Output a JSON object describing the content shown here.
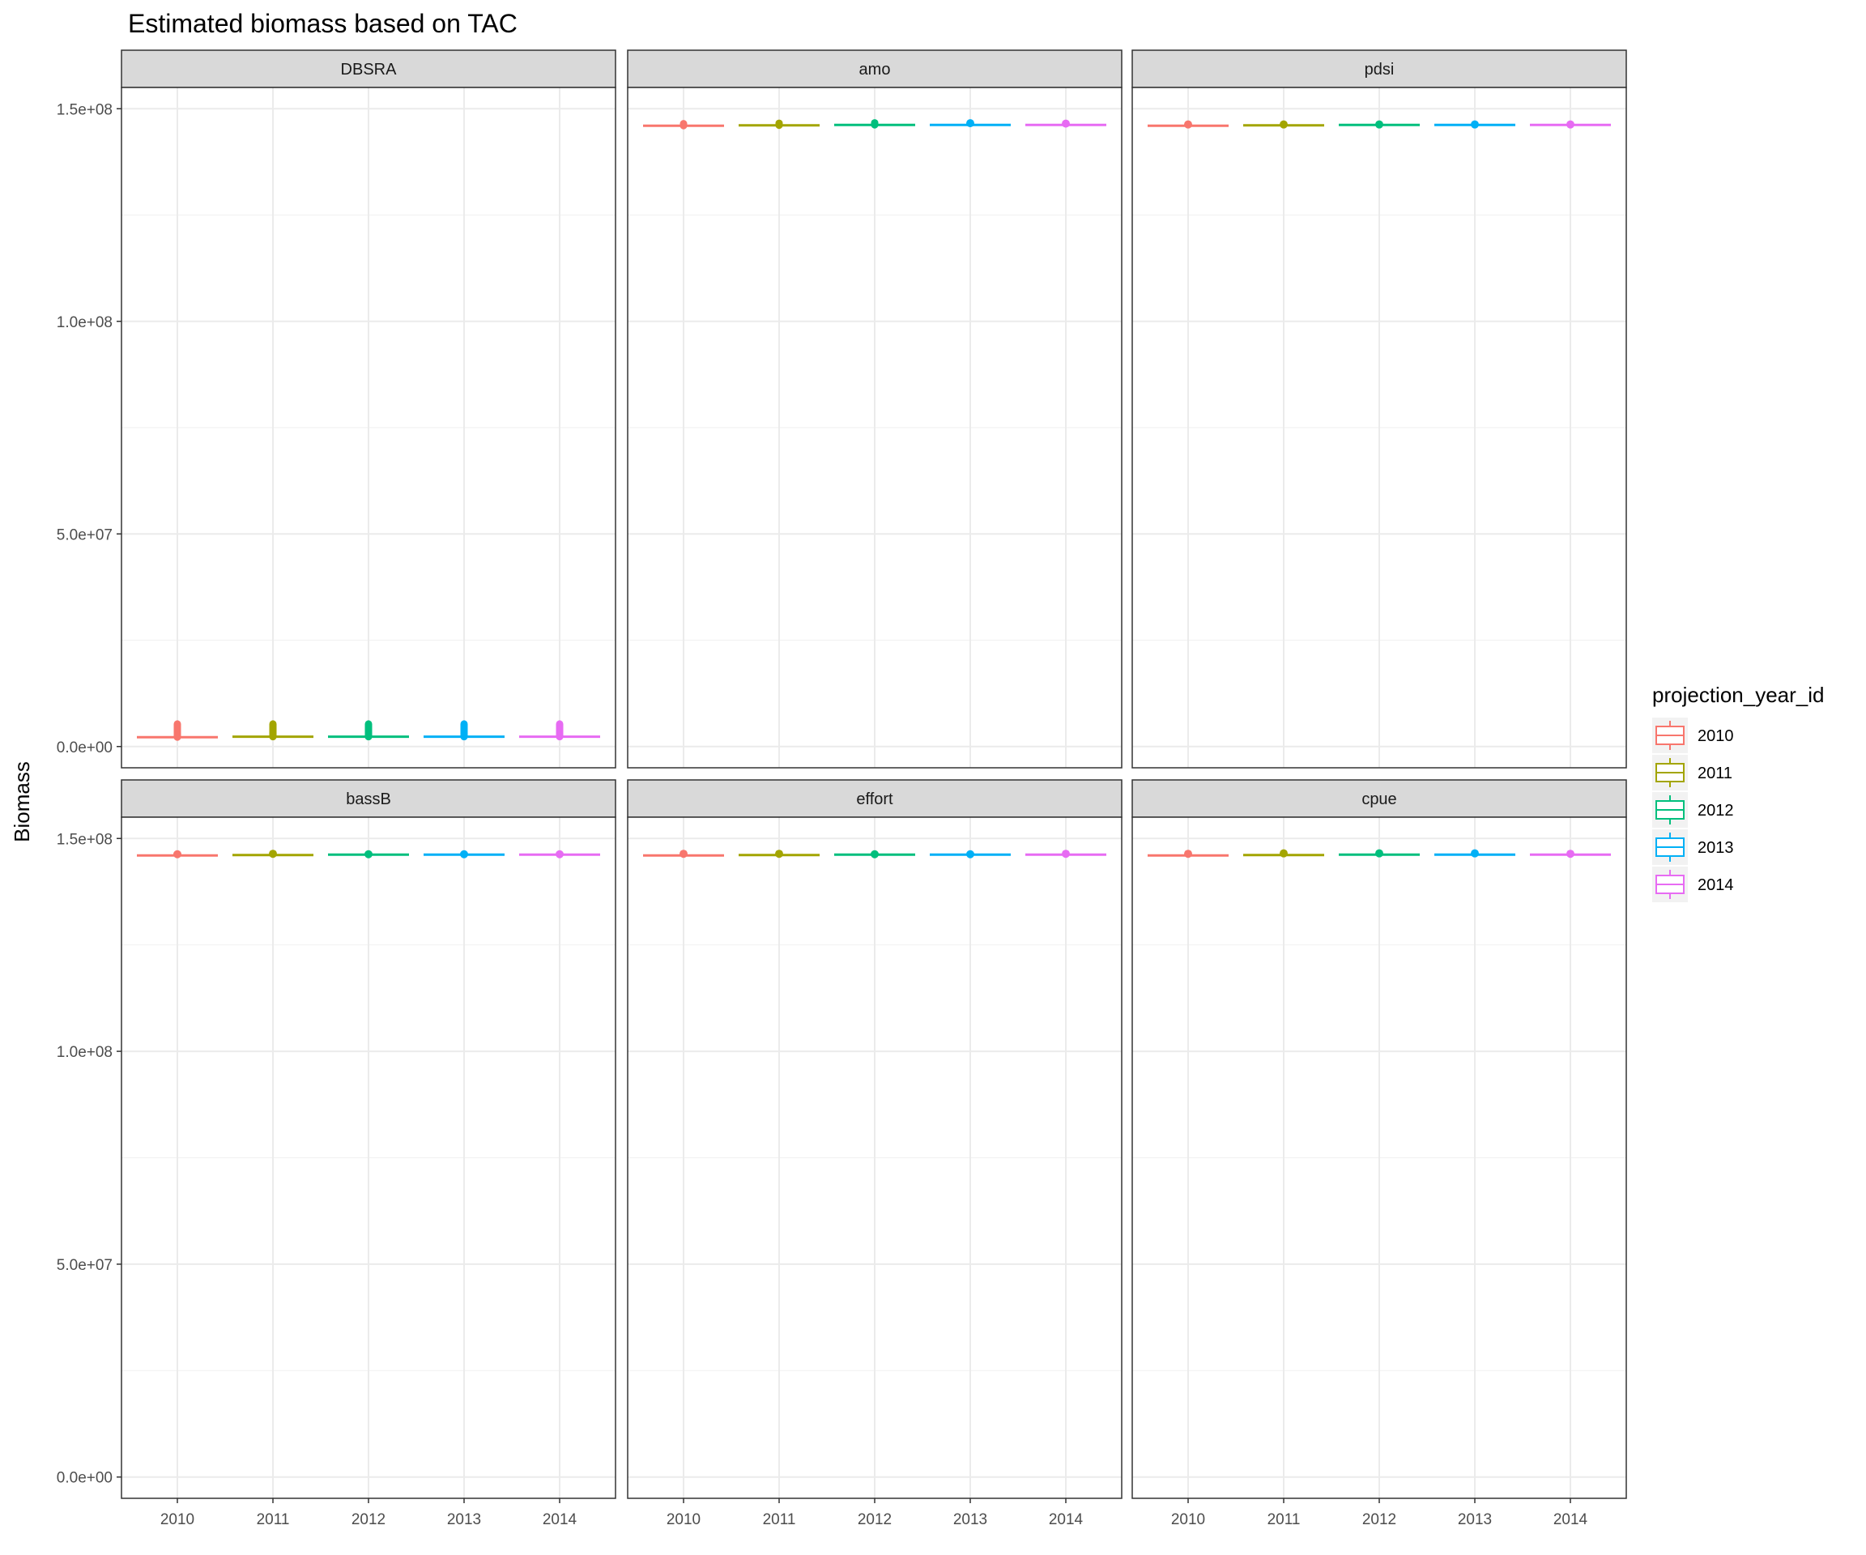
{
  "chart_data": {
    "type": "boxplot",
    "title": "Estimated biomass based on TAC",
    "xlabel": "",
    "ylabel": "Biomass",
    "ylim": [
      -5000000,
      155000000
    ],
    "y_ticks": [
      0,
      50000000,
      100000000,
      150000000
    ],
    "y_tick_labels": [
      "0.0e+00",
      "5.0e+07",
      "1.0e+08",
      "1.5e+08"
    ],
    "categories": [
      "2010",
      "2011",
      "2012",
      "2013",
      "2014"
    ],
    "grid": true,
    "legend": {
      "title": "projection_year_id",
      "placement": "right",
      "entries": [
        {
          "label": "2010",
          "color": "#F8766D"
        },
        {
          "label": "2011",
          "color": "#A3A500"
        },
        {
          "label": "2012",
          "color": "#00BF7D"
        },
        {
          "label": "2013",
          "color": "#00B0F6"
        },
        {
          "label": "2014",
          "color": "#E76BF3"
        }
      ]
    },
    "panels": [
      {
        "label": "DBSRA",
        "values": [
          2200000,
          2300000,
          2300000,
          2300000,
          2300000
        ],
        "outlier_max": [
          5300000,
          5300000,
          5300000,
          5300000,
          5300000
        ]
      },
      {
        "label": "amo",
        "values": [
          146000000,
          146100000,
          146200000,
          146200000,
          146200000
        ],
        "outlier_max": [
          146500000,
          146600000,
          146700000,
          146600000,
          146500000
        ]
      },
      {
        "label": "pdsi",
        "values": [
          146000000,
          146100000,
          146200000,
          146200000,
          146200000
        ],
        "outlier_max": [
          146300000,
          146300000,
          146300000,
          146300000,
          146300000
        ]
      },
      {
        "label": "bassB",
        "values": [
          146000000,
          146100000,
          146200000,
          146200000,
          146200000
        ],
        "outlier_max": [
          146300000,
          146400000,
          146300000,
          146300000,
          146300000
        ]
      },
      {
        "label": "effort",
        "values": [
          146000000,
          146100000,
          146200000,
          146200000,
          146200000
        ],
        "outlier_max": [
          146400000,
          146400000,
          146300000,
          146300000,
          146400000
        ]
      },
      {
        "label": "cpue",
        "values": [
          146000000,
          146100000,
          146200000,
          146200000,
          146200000
        ],
        "outlier_max": [
          146400000,
          146500000,
          146500000,
          146500000,
          146400000
        ]
      }
    ]
  }
}
